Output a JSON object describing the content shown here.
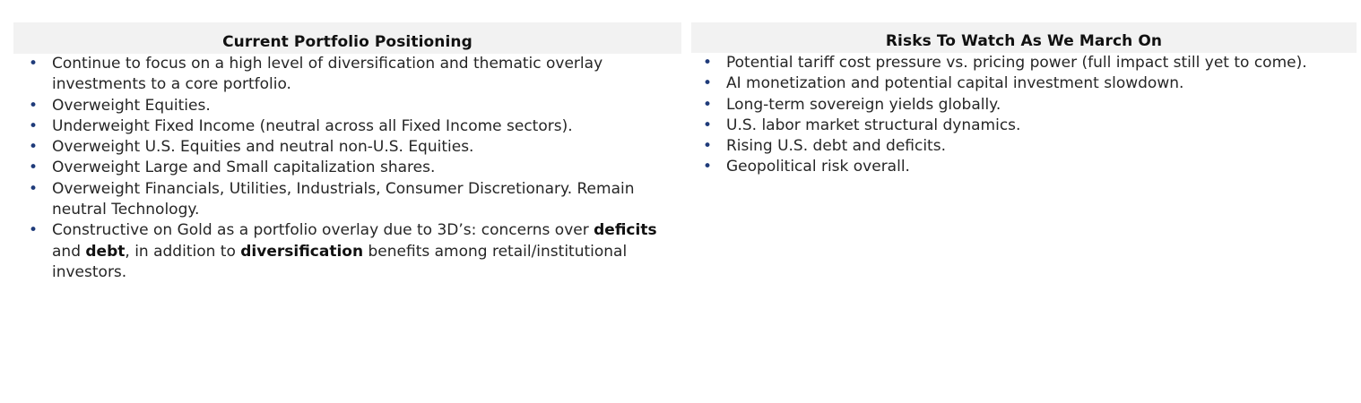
{
  "left_column": {
    "title": "Current Portfolio Positioning",
    "items": [
      {
        "text": "Continue to focus on a high level of diversification and thematic overlay investments to a core portfolio."
      },
      {
        "text": "Overweight Equities."
      },
      {
        "text": "Underweight Fixed Income (neutral across all Fixed Income sectors)."
      },
      {
        "text": "Overweight U.S. Equities and neutral non-U.S. Equities."
      },
      {
        "text": "Overweight Large and Small capitalization shares."
      },
      {
        "text": "Overweight Financials, Utilities, Industrials, Consumer Discretionary. Remain neutral Technology."
      }
    ],
    "gold_item": {
      "part1": "Constructive on Gold as a portfolio overlay due to 3D’s: concerns over ",
      "bold1": "deficits",
      "part2": " and ",
      "bold2": "debt",
      "part3": ", in addition to ",
      "bold3": "diversification",
      "part4": " benefits among retail/institutional investors."
    }
  },
  "right_column": {
    "title": "Risks To Watch As We March On",
    "items": [
      {
        "text": "Potential tariff cost pressure vs. pricing power (full impact still yet to come)."
      },
      {
        "text": "AI monetization and potential capital investment slowdown."
      },
      {
        "text": "Long-term sovereign yields globally."
      },
      {
        "text": "U.S. labor market structural dynamics."
      },
      {
        "text": "Rising U.S. debt and deficits."
      },
      {
        "text": "Geopolitical risk overall."
      }
    ]
  },
  "colors": {
    "header_background": "#f2f2f2",
    "bullet": "#1f3b7a",
    "text": "#262626"
  },
  "icons": {
    "bullet": "bullet-dot-icon"
  }
}
